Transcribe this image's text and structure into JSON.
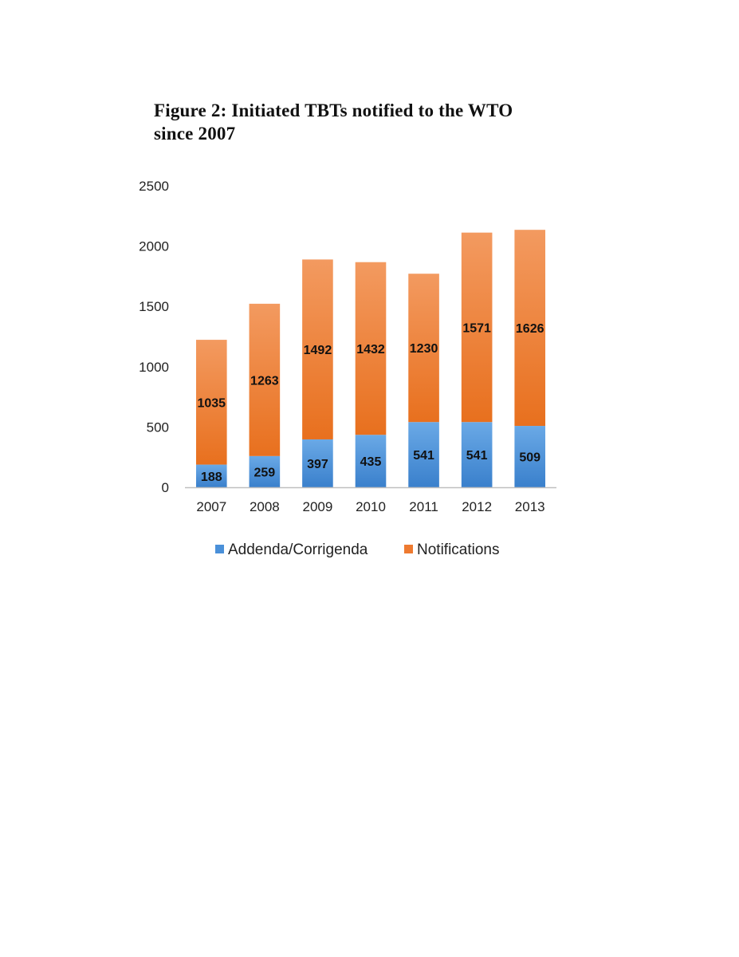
{
  "figure": {
    "title_line1": "Figure 2: Initiated TBTs notified to the WTO",
    "title_line2": "since 2007"
  },
  "chart_data": {
    "type": "bar",
    "stacked": true,
    "title": "Figure 2: Initiated TBTs notified to the WTO since 2007",
    "categories": [
      "2007",
      "2008",
      "2009",
      "2010",
      "2011",
      "2012",
      "2013"
    ],
    "series": [
      {
        "name": "Addenda/Corrigenda",
        "values": [
          188,
          259,
          397,
          435,
          541,
          541,
          509
        ],
        "color": "#4a90d9"
      },
      {
        "name": "Notifications",
        "values": [
          1035,
          1263,
          1492,
          1432,
          1230,
          1571,
          1626
        ],
        "color": "#ee7a30"
      }
    ],
    "ylim": [
      0,
      2500
    ],
    "yticks": [
      0,
      500,
      1000,
      1500,
      2000,
      2500
    ],
    "grid": false,
    "legend": "bottom",
    "xlabel": "",
    "ylabel": ""
  }
}
